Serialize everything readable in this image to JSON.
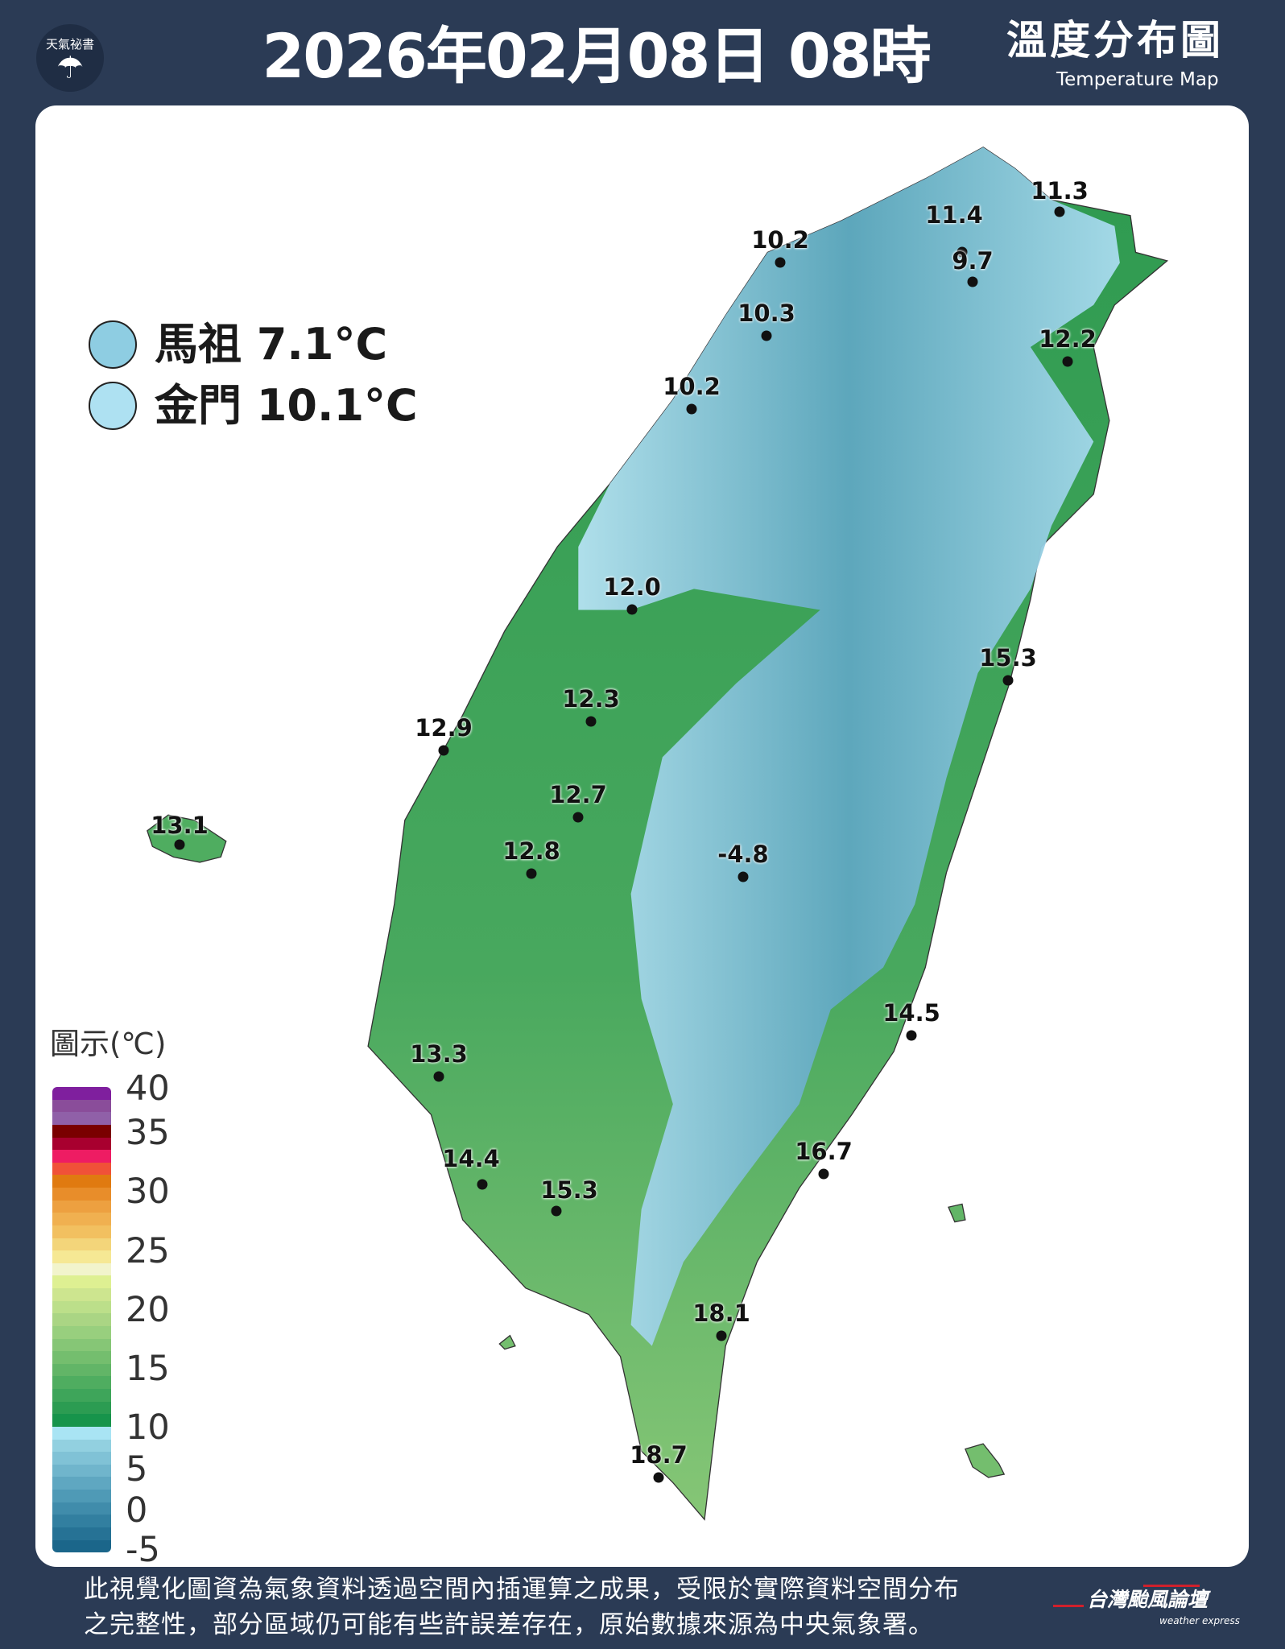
{
  "header": {
    "logo_text": "天氣祕書",
    "title": "2026年02月08日 08時",
    "subtitle": "溫度分布圖",
    "subtitle_en": "Temperature Map"
  },
  "islands": [
    {
      "name": "馬祖",
      "value": "7.1°C",
      "color": "#8ecde2"
    },
    {
      "name": "金門",
      "value": "10.1°C",
      "color": "#aee1f2"
    }
  ],
  "stations": [
    "11.3",
    "11.4",
    "9.7",
    "10.2",
    "10.3",
    "12.2",
    "10.2",
    "12.0",
    "15.3",
    "12.3",
    "12.9",
    "12.7",
    "13.1",
    "12.8",
    "-4.8",
    "14.5",
    "13.3",
    "16.7",
    "14.4",
    "15.3",
    "18.1",
    "18.7"
  ],
  "legend": {
    "title": "圖示(℃)",
    "ticks": [
      "40",
      "35",
      "30",
      "25",
      "20",
      "15",
      "10",
      "5",
      "0",
      "-5"
    ],
    "colors": [
      "#7f1f9e",
      "#8a4d9a",
      "#9060a8",
      "#7a0000",
      "#a8002f",
      "#ee1c63",
      "#f05138",
      "#e07a10",
      "#e88d2a",
      "#eda040",
      "#f0b050",
      "#f2c060",
      "#f3d57a",
      "#f6e894",
      "#f2f4cc",
      "#def092",
      "#cde58f",
      "#bcdf8a",
      "#aad584",
      "#98cf7e",
      "#86c676",
      "#74be6e",
      "#62b567",
      "#4fad60",
      "#3ea55a",
      "#2c9c52",
      "#17944b",
      "#a9e4f4",
      "#92d0e0",
      "#80c2d6",
      "#70b5cc",
      "#5fa7c1",
      "#4f9ab6",
      "#408cab",
      "#327fa0",
      "#267295",
      "#1b668a"
    ]
  },
  "footer": {
    "line1": "此視覺化圖資為氣象資料透過空間內插運算之成果，受限於實際資料空間分布",
    "line2": "之完整性，部分區域仍可能有些許誤差存在，原始數據來源為中央氣象署。",
    "brand": "台灣颱風論壇",
    "brand_en": "weather express"
  }
}
